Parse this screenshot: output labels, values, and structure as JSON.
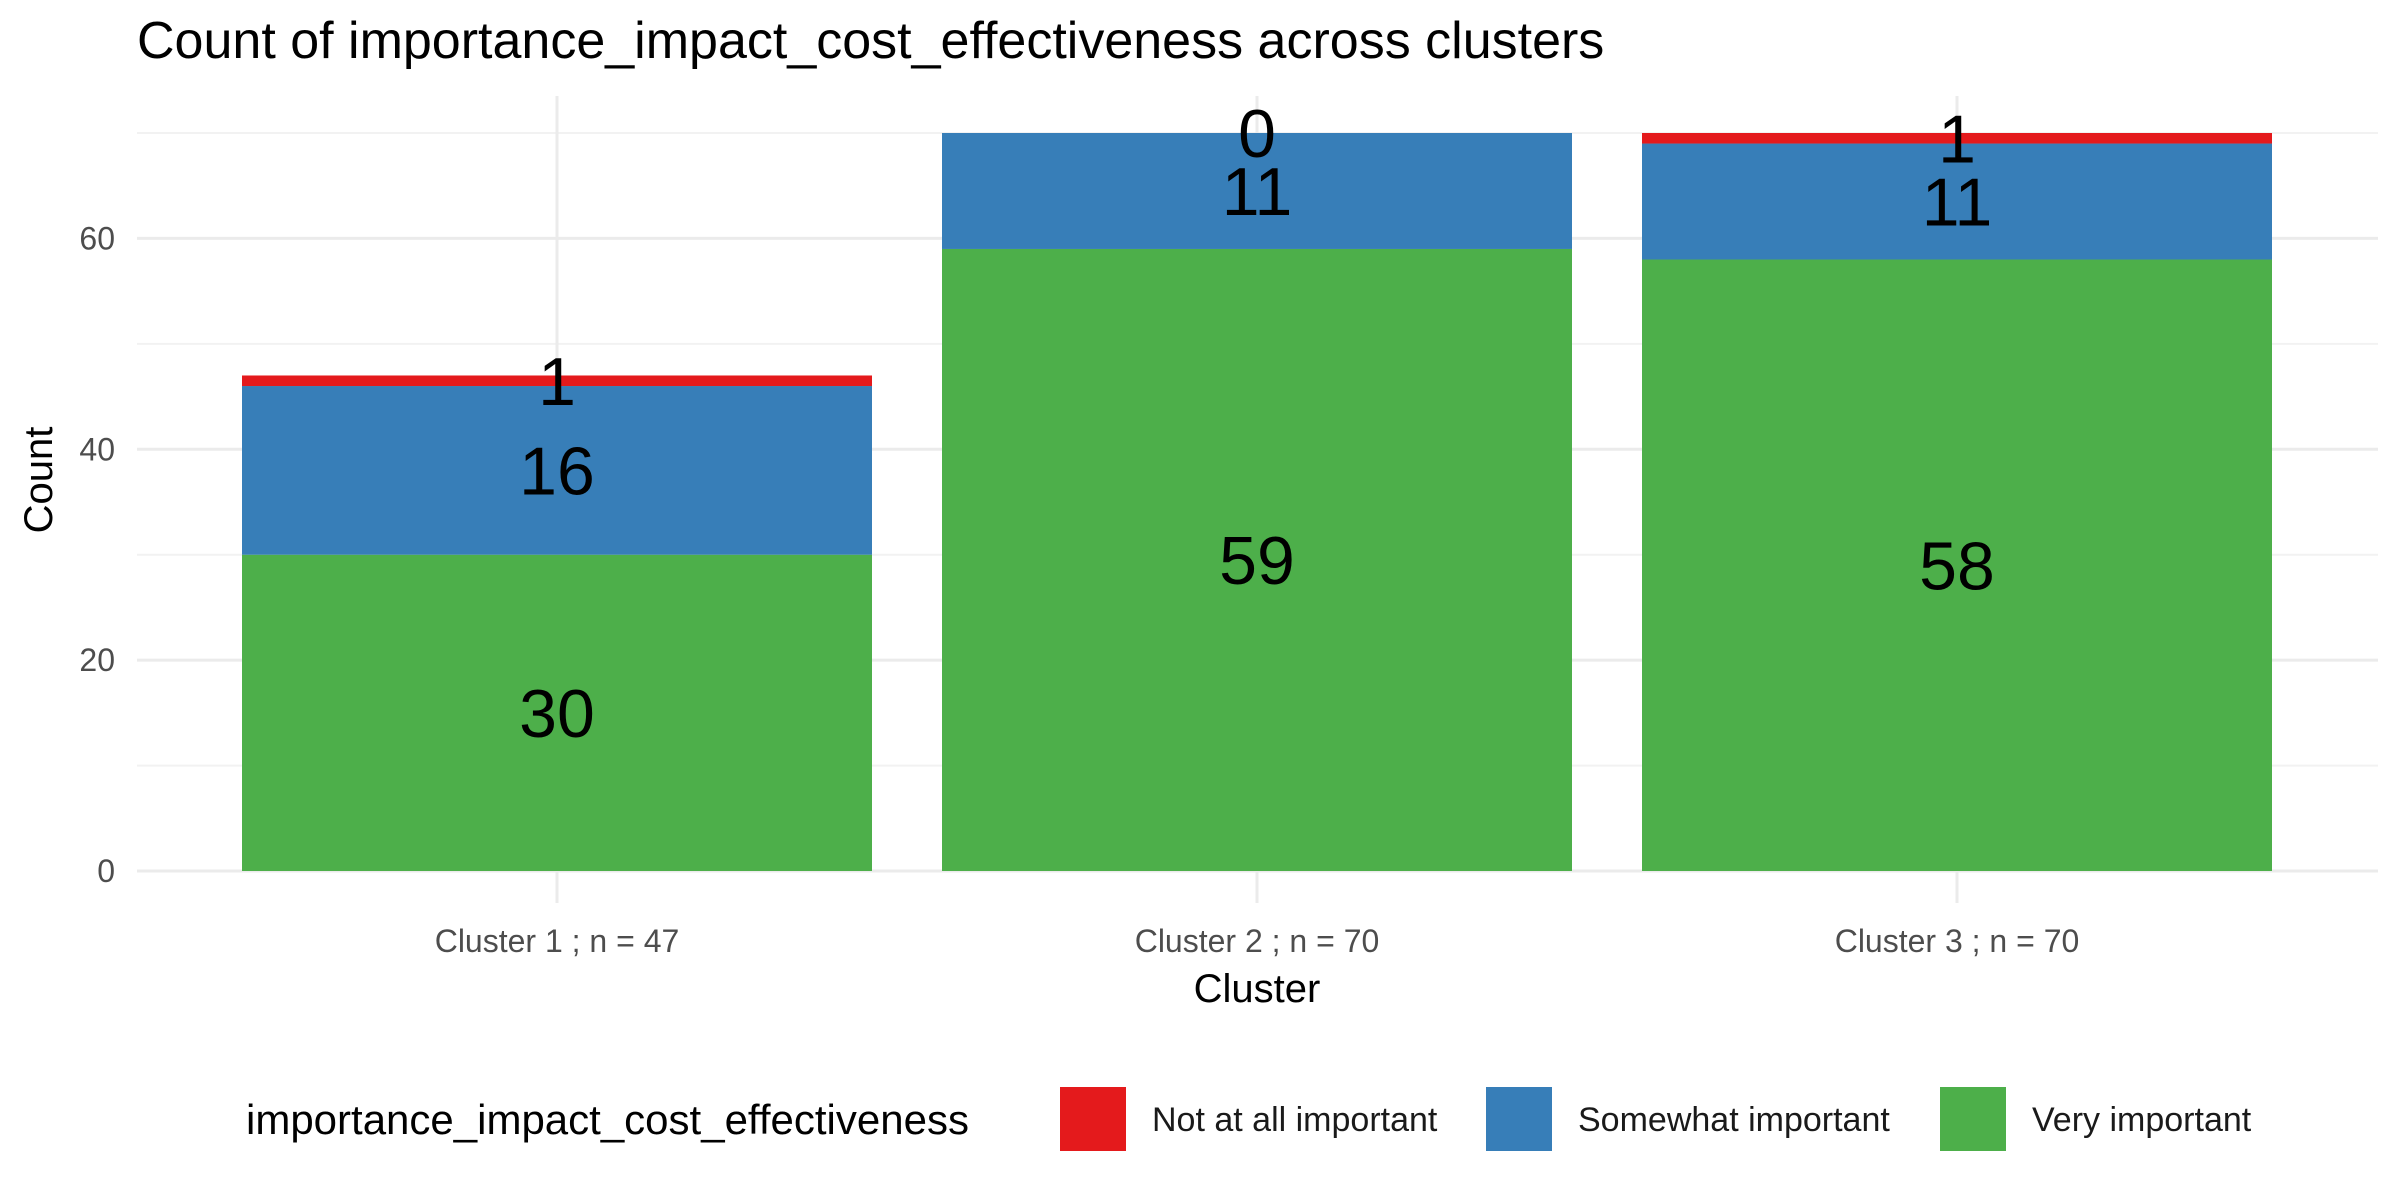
{
  "chart_data": {
    "type": "bar",
    "stacked": true,
    "title": "Count of importance_impact_cost_effectiveness across clusters",
    "xlabel": "Cluster",
    "ylabel": "Count",
    "categories": [
      "Cluster 1 ; n = 47",
      "Cluster 2 ; n = 70",
      "Cluster 3 ; n = 70"
    ],
    "series": [
      {
        "name": "Very important",
        "color": "#4daf4a",
        "values": [
          30,
          59,
          58
        ]
      },
      {
        "name": "Somewhat important",
        "color": "#377eb8",
        "values": [
          16,
          11,
          11
        ]
      },
      {
        "name": "Not at all important",
        "color": "#e41a1c",
        "values": [
          1,
          0,
          1
        ]
      }
    ],
    "ylim": [
      0,
      70
    ],
    "yticks": [
      0,
      20,
      40,
      60
    ],
    "grid": true,
    "legend": {
      "title": "importance_impact_cost_effectiveness",
      "position": "bottom",
      "order": [
        "Not at all important",
        "Somewhat important",
        "Very important"
      ]
    }
  }
}
